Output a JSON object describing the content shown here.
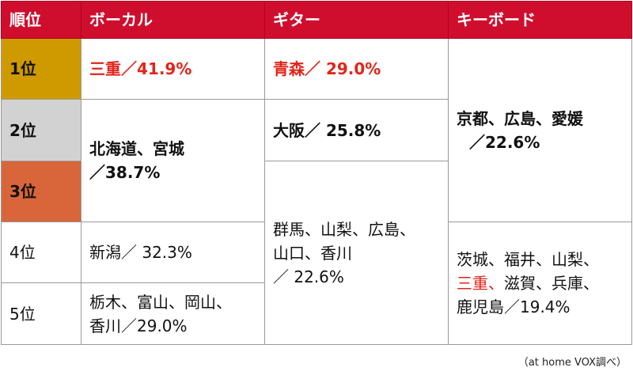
{
  "headers": {
    "rank": "順位",
    "vocal": "ボーカル",
    "guitar": "ギター",
    "keyboard": "キーボード"
  },
  "ranks": {
    "r1": "1位",
    "r2": "2位",
    "r3": "3位",
    "r4": "4位",
    "r5": "5位"
  },
  "vocal": {
    "r1": "三重／41.9%",
    "r2_3": {
      "line1": "北海道、宮城",
      "line2": "／38.7%"
    },
    "r4": "新潟／ 32.3%",
    "r5": {
      "line1": "栃木、富山、岡山、",
      "line2": "香川／29.0%"
    }
  },
  "guitar": {
    "r1": "青森／ 29.0%",
    "r2": "大阪／ 25.8%",
    "r3_5": {
      "line1": "群馬、山梨、広島、",
      "line2": "山口、香川",
      "line3": "／ 22.6%"
    }
  },
  "keyboard": {
    "r1_3": {
      "line1": "京都、広島、愛媛",
      "line2": "／22.6%"
    },
    "r4_5": {
      "line1": "茨城、福井、山梨、",
      "line2_red": "三重、",
      "line2_rest": "滋賀、兵庫、",
      "line3": "鹿児島／19.4%"
    }
  },
  "footnote": "（at home VOX調べ）",
  "colors": {
    "header": "#cf0e2e",
    "gold": "#cf9a00",
    "silver": "#d2d2d2",
    "bronze": "#d9663a",
    "highlight_text": "#e1251b"
  }
}
